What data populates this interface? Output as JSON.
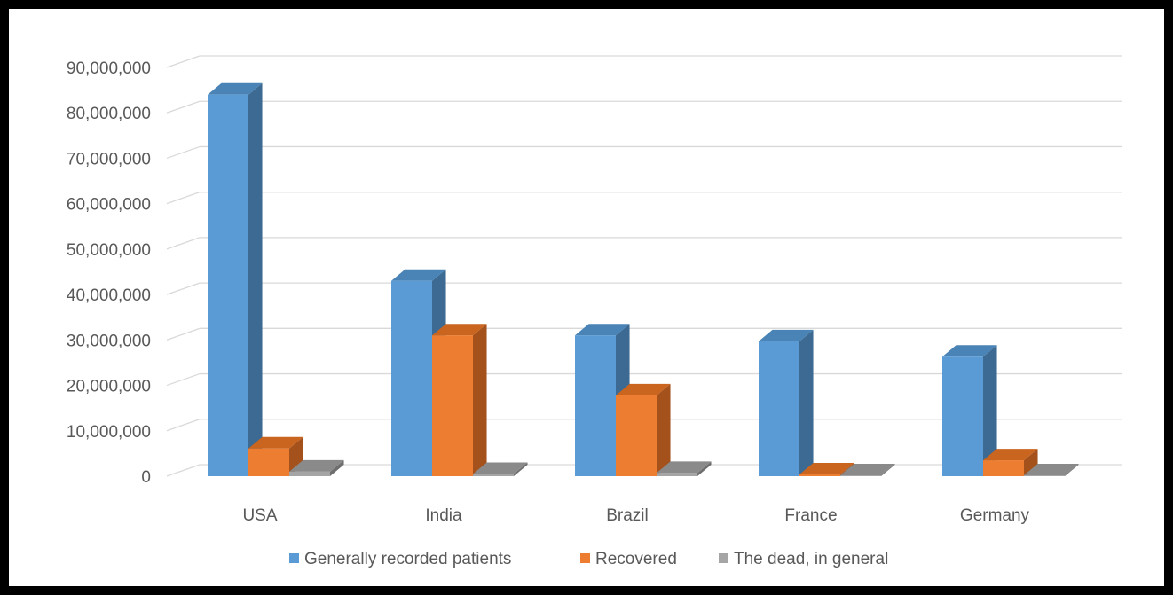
{
  "chart_data": {
    "type": "bar",
    "categories": [
      "USA",
      "India",
      "Brazil",
      "France",
      "Germany"
    ],
    "series": [
      {
        "name": "Generally recorded patients",
        "color": "#5b9bd5",
        "side_color": "#3c6a92",
        "top_color": "#4a83b6",
        "values": [
          84000000,
          43000000,
          31000000,
          29700000,
          26300000
        ]
      },
      {
        "name": "Recovered",
        "color": "#ed7d31",
        "side_color": "#a4511c",
        "top_color": "#c9651f",
        "values": [
          6100000,
          31000000,
          17800000,
          400000,
          3500000
        ]
      },
      {
        "name": "The dead, in general",
        "color": "#a5a5a5",
        "side_color": "#6e6e6e",
        "top_color": "#8a8a8a",
        "values": [
          1000000,
          500000,
          700000,
          200000,
          200000
        ]
      }
    ],
    "y_ticks": [
      "0",
      "10,000,000",
      "20,000,000",
      "30,000,000",
      "40,000,000",
      "50,000,000",
      "60,000,000",
      "70,000,000",
      "80,000,000",
      "90,000,000"
    ],
    "ylim": [
      0,
      90000000
    ],
    "grid": true,
    "legend_position": "bottom",
    "title": "",
    "xlabel": "",
    "ylabel": ""
  }
}
